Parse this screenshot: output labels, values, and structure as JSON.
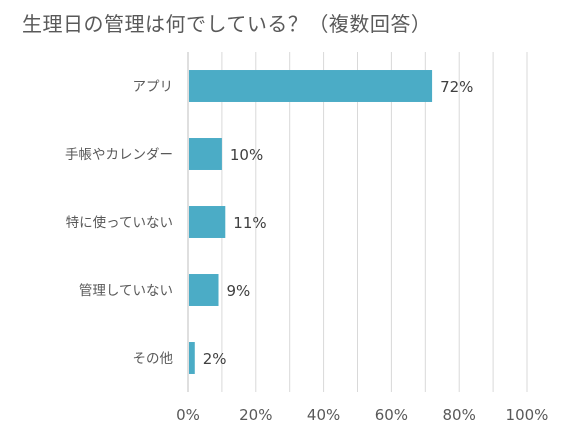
{
  "chart_data": {
    "type": "bar",
    "orientation": "horizontal",
    "title": "生理日の管理は何でしている？（複数回答）",
    "categories": [
      "アプリ",
      "手帳やカレンダー",
      "特に使っていない",
      "管理していない",
      "その他"
    ],
    "values": [
      72,
      10,
      11,
      9,
      2
    ],
    "data_labels": [
      "72%",
      "10%",
      "11%",
      "9%",
      "2%"
    ],
    "x_ticks": [
      "0%",
      "20%",
      "40%",
      "60%",
      "80%",
      "100%"
    ],
    "xlim": [
      0,
      100
    ],
    "grid": true,
    "legend": "none",
    "bar_color": "#4bacc6"
  }
}
